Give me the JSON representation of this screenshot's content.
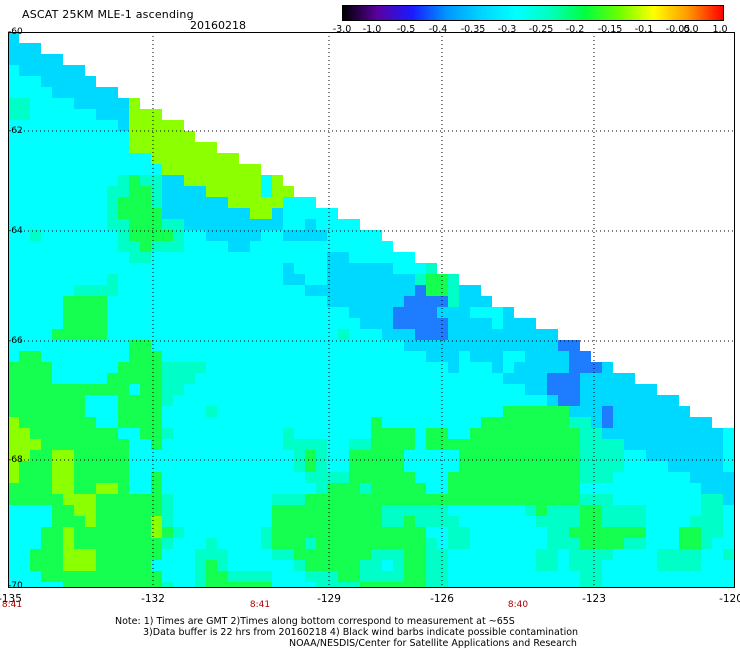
{
  "header": {
    "title": "ASCAT 25KM MLE-1 ascending",
    "date": "20160218"
  },
  "colorbar": {
    "tick_labels": [
      "-3.0",
      "-1.0",
      "-0.5",
      "-0.4",
      "-0.35",
      "-0.3",
      "-0.25",
      "-0.2",
      "-0.15",
      "-0.1",
      "-0.05",
      "0.0",
      "1.0"
    ],
    "colors": [
      "#000000",
      "#5a00a0",
      "#1a1aff",
      "#0096ff",
      "#00d4ff",
      "#00ffff",
      "#00ffbf",
      "#00ff40",
      "#6cff00",
      "#ffff00",
      "#ff9600",
      "#ff0000"
    ]
  },
  "map": {
    "lat_labels": [
      "-60",
      "-62",
      "-64",
      "-66",
      "-68",
      "-70"
    ],
    "lon_labels": [
      "-135",
      "-132",
      "-129",
      "-126",
      "-123",
      "-120"
    ],
    "time_labels": [
      "8:41",
      "8:41",
      "8:40"
    ],
    "swath_colors": [
      "#00d9ff",
      "#00ffff",
      "#00ffc8",
      "#14ff50",
      "#8cff00",
      "#eaff00",
      "#ffb000",
      "#1e7dff"
    ]
  },
  "notes": {
    "line1": "Note: 1) Times are GMT 2)Times along bottom correspond to measurement at ~65S",
    "line2": "3)Data buffer is 22 hrs from 20160218 4) Black wind barbs indicate possible contamination",
    "line3": "NOAA/NESDIS/Center for Satellite Applications and Research"
  }
}
